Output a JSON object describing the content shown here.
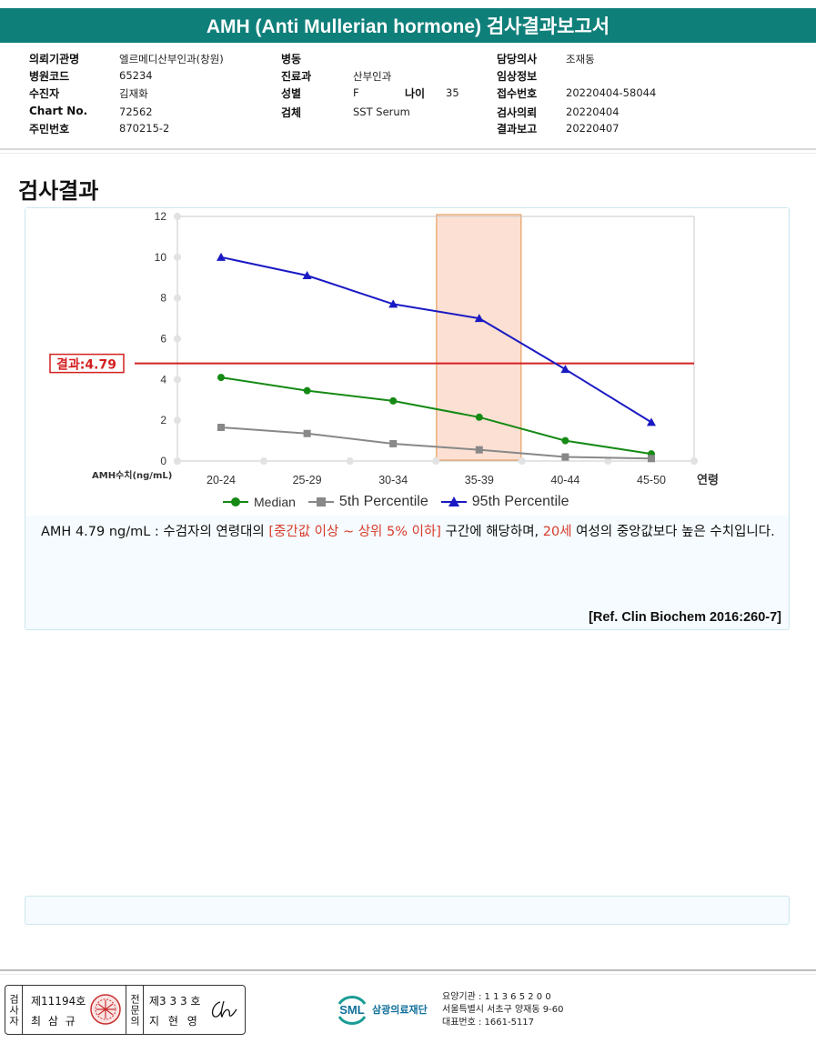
{
  "title": "AMH (Anti Mullerian hormone) 검사결과보고서",
  "header": {
    "col1": [
      {
        "label": "의뢰기관명",
        "value": "엘르메디산부인과(창원)"
      },
      {
        "label": "병원코드",
        "value": "65234"
      },
      {
        "label": "수진자",
        "value": "김재화"
      },
      {
        "label": "Chart No.",
        "value": "72562"
      },
      {
        "label": "주민번호",
        "value": "870215-2"
      }
    ],
    "col2": [
      {
        "label": "병동",
        "value": ""
      },
      {
        "label": "진료과",
        "value": "산부인과"
      },
      {
        "label": "성별",
        "value": "F"
      },
      {
        "label": "검체",
        "value": "SST Serum"
      }
    ],
    "age_label": "나이",
    "age_value": "35",
    "col3": [
      {
        "label": "담당의사",
        "value": "조재동"
      },
      {
        "label": "임상정보",
        "value": ""
      },
      {
        "label": "접수번호",
        "value": "20220404-58044"
      },
      {
        "label": "검사의뢰",
        "value": "20220404"
      },
      {
        "label": "결과보고",
        "value": "20220407"
      }
    ]
  },
  "section_title": "검사결과",
  "chart_data": {
    "type": "line",
    "categories": [
      "20-24",
      "25-29",
      "30-34",
      "35-39",
      "40-44",
      "45-50"
    ],
    "xlabel": "연령",
    "ylabel": "AMH수치(ng/mL)",
    "ylim": [
      0,
      12
    ],
    "yticks": [
      0,
      2,
      4,
      6,
      8,
      10,
      12
    ],
    "grid": false,
    "legend_position": "bottom",
    "highlight_category": "35-39",
    "series": [
      {
        "name": "Median",
        "values": [
          4.1,
          3.45,
          2.95,
          2.15,
          1.0,
          0.35
        ],
        "color": "#158a15",
        "marker": "circle"
      },
      {
        "name": "5th Percentile",
        "values": [
          1.65,
          1.35,
          0.85,
          0.55,
          0.2,
          0.12
        ],
        "color": "#888888",
        "marker": "square"
      },
      {
        "name": "95th Percentile",
        "values": [
          10.0,
          9.1,
          7.7,
          7.0,
          4.5,
          1.9
        ],
        "color": "#1a1ac4",
        "marker": "triangle"
      }
    ],
    "result_line": {
      "label": "결과:4.79",
      "value": 4.79,
      "color": "#d42020"
    },
    "highlight_color": "#fbe0d3",
    "highlight_border": "#e8a060"
  },
  "result": {
    "prefix": "AMH  4.79 ng/mL : 수검자의 연령대의 ",
    "range_text": "[중간값 이상 ~ 상위 5% 이하]",
    "middle": "  구간에 해당하며, ",
    "age_text": "20세",
    "suffix": " 여성의 중앙값보다 높은 수치입니다.",
    "reference": "[Ref. Clin Biochem 2016:260-7]"
  },
  "footer": {
    "inspector_label": "검사자",
    "inspector_no": "제11194호",
    "inspector_name": "최 삼 규",
    "specialist_label": "전문의",
    "specialist_no": "제3 3 3 호",
    "specialist_name": "지 현 영",
    "logo": "SML",
    "foundation_name": "삼광의료재단",
    "care_code": "요양기관 : 1 1 3 6 5 2 0 0",
    "address": "서울특별시 서초구 양재동 9-60",
    "phone": "대표번호 : 1661-5117"
  }
}
